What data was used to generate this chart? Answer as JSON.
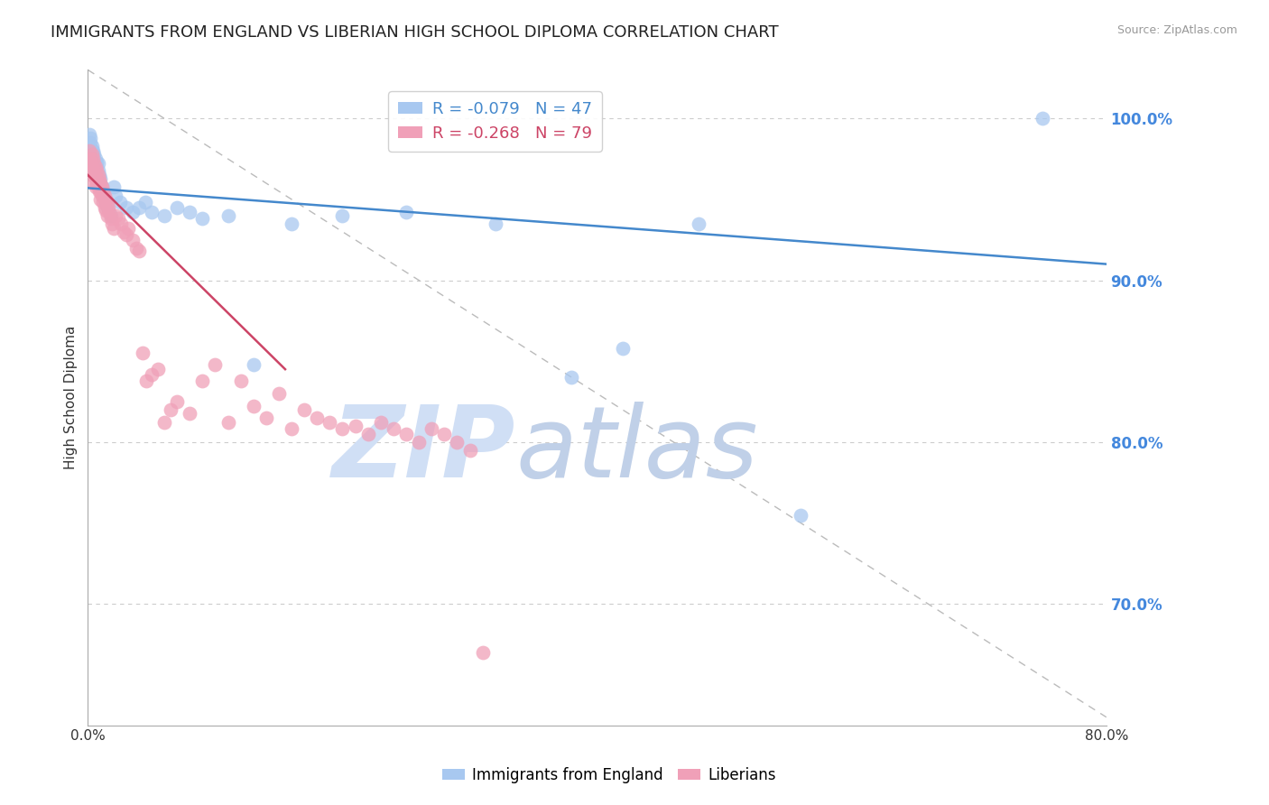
{
  "title": "IMMIGRANTS FROM ENGLAND VS LIBERIAN HIGH SCHOOL DIPLOMA CORRELATION CHART",
  "source": "Source: ZipAtlas.com",
  "ylabel_left": "High School Diploma",
  "x_min": 0.0,
  "x_max": 0.8,
  "y_min": 0.625,
  "y_max": 1.03,
  "yticks_right": [
    1.0,
    0.9,
    0.8,
    0.7
  ],
  "ytick_labels_right": [
    "100.0%",
    "90.0%",
    "80.0%",
    "70.0%"
  ],
  "xticks": [
    0.0,
    0.1,
    0.2,
    0.3,
    0.4,
    0.5,
    0.6,
    0.7,
    0.8
  ],
  "xtick_labels": [
    "0.0%",
    "",
    "",
    "",
    "",
    "",
    "",
    "",
    "80.0%"
  ],
  "legend_blue_label": "R = -0.079   N = 47",
  "legend_pink_label": "R = -0.268   N = 79",
  "scatter_blue_color": "#A8C8F0",
  "scatter_pink_color": "#F0A0B8",
  "trend_blue_color": "#4488CC",
  "trend_pink_color": "#CC4466",
  "watermark_color": "#D0DFF5",
  "background_color": "#FFFFFF",
  "grid_color": "#CCCCCC",
  "right_axis_color": "#4488DD",
  "title_fontsize": 13,
  "axis_label_fontsize": 11,
  "tick_fontsize": 11,
  "blue_scatter_x": [
    0.001,
    0.002,
    0.002,
    0.003,
    0.003,
    0.004,
    0.004,
    0.005,
    0.005,
    0.006,
    0.006,
    0.007,
    0.007,
    0.008,
    0.008,
    0.009,
    0.01,
    0.01,
    0.011,
    0.012,
    0.013,
    0.014,
    0.015,
    0.018,
    0.02,
    0.022,
    0.025,
    0.03,
    0.035,
    0.04,
    0.045,
    0.05,
    0.06,
    0.07,
    0.08,
    0.09,
    0.11,
    0.13,
    0.16,
    0.2,
    0.25,
    0.32,
    0.38,
    0.42,
    0.48,
    0.56,
    0.75
  ],
  "blue_scatter_y": [
    0.99,
    0.988,
    0.985,
    0.98,
    0.983,
    0.978,
    0.98,
    0.975,
    0.978,
    0.972,
    0.975,
    0.97,
    0.973,
    0.968,
    0.972,
    0.965,
    0.96,
    0.963,
    0.958,
    0.955,
    0.95,
    0.948,
    0.945,
    0.94,
    0.958,
    0.952,
    0.948,
    0.945,
    0.942,
    0.945,
    0.948,
    0.942,
    0.94,
    0.945,
    0.942,
    0.938,
    0.94,
    0.848,
    0.935,
    0.94,
    0.942,
    0.935,
    0.84,
    0.858,
    0.935,
    0.755,
    1.0
  ],
  "blue_trend_x": [
    0.0,
    0.8
  ],
  "blue_trend_y": [
    0.957,
    0.91
  ],
  "pink_trend_x": [
    0.0,
    0.155
  ],
  "pink_trend_y": [
    0.965,
    0.845
  ],
  "pink_scatter_x": [
    0.001,
    0.001,
    0.002,
    0.002,
    0.003,
    0.003,
    0.003,
    0.004,
    0.004,
    0.005,
    0.005,
    0.005,
    0.006,
    0.006,
    0.006,
    0.007,
    0.007,
    0.008,
    0.008,
    0.009,
    0.009,
    0.01,
    0.01,
    0.01,
    0.011,
    0.011,
    0.012,
    0.012,
    0.013,
    0.013,
    0.014,
    0.014,
    0.015,
    0.015,
    0.016,
    0.017,
    0.018,
    0.019,
    0.02,
    0.022,
    0.024,
    0.026,
    0.028,
    0.03,
    0.032,
    0.035,
    0.038,
    0.04,
    0.043,
    0.046,
    0.05,
    0.055,
    0.06,
    0.065,
    0.07,
    0.08,
    0.09,
    0.1,
    0.11,
    0.12,
    0.13,
    0.14,
    0.15,
    0.16,
    0.17,
    0.18,
    0.19,
    0.2,
    0.21,
    0.22,
    0.23,
    0.24,
    0.25,
    0.26,
    0.27,
    0.28,
    0.29,
    0.3,
    0.31
  ],
  "pink_scatter_y": [
    0.98,
    0.975,
    0.972,
    0.968,
    0.978,
    0.97,
    0.965,
    0.975,
    0.968,
    0.972,
    0.965,
    0.96,
    0.97,
    0.963,
    0.958,
    0.968,
    0.96,
    0.965,
    0.958,
    0.962,
    0.955,
    0.96,
    0.955,
    0.95,
    0.958,
    0.952,
    0.955,
    0.948,
    0.952,
    0.945,
    0.95,
    0.943,
    0.948,
    0.94,
    0.945,
    0.942,
    0.938,
    0.935,
    0.932,
    0.94,
    0.938,
    0.935,
    0.93,
    0.928,
    0.932,
    0.925,
    0.92,
    0.918,
    0.855,
    0.838,
    0.842,
    0.845,
    0.812,
    0.82,
    0.825,
    0.818,
    0.838,
    0.848,
    0.812,
    0.838,
    0.822,
    0.815,
    0.83,
    0.808,
    0.82,
    0.815,
    0.812,
    0.808,
    0.81,
    0.805,
    0.812,
    0.808,
    0.805,
    0.8,
    0.808,
    0.805,
    0.8,
    0.795,
    0.67
  ],
  "diag_line_x": [
    0.0,
    0.8
  ],
  "diag_line_y": [
    1.03,
    0.63
  ]
}
